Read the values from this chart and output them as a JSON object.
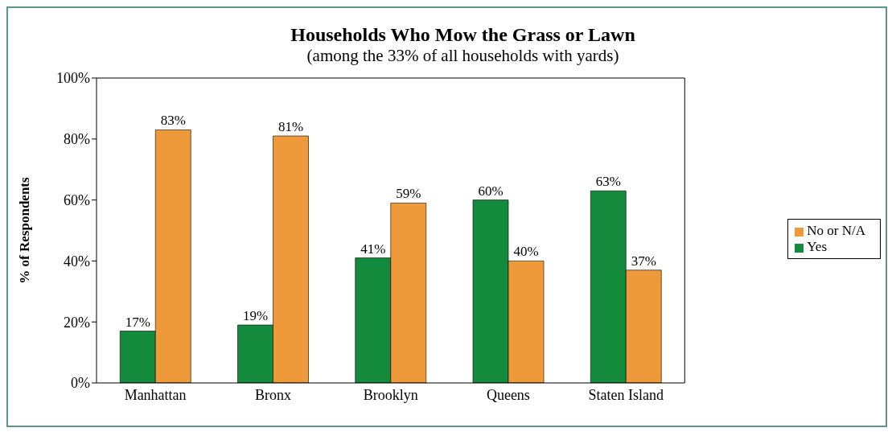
{
  "chart_data": {
    "type": "bar",
    "title": "Households Who Mow the Grass or Lawn",
    "subtitle": "(among the 33% of all households with yards)",
    "ylabel": "% of Respondents",
    "categories": [
      "Manhattan",
      "Bronx",
      "Brooklyn",
      "Queens",
      "Staten Island"
    ],
    "series": [
      {
        "name": "Yes",
        "color": "#138a3c",
        "values": [
          17,
          19,
          41,
          60,
          63
        ],
        "value_labels": [
          "17%",
          "19%",
          "41%",
          "60%",
          "63%"
        ]
      },
      {
        "name": "No or N/A",
        "color": "#ee9a3a",
        "values": [
          83,
          81,
          59,
          40,
          37
        ],
        "value_labels": [
          "83%",
          "81%",
          "59%",
          "40%",
          "37%"
        ]
      }
    ],
    "ylim": [
      0,
      100
    ],
    "yticks": [
      {
        "value": 0,
        "label": "0%"
      },
      {
        "value": 20,
        "label": "20%"
      },
      {
        "value": 40,
        "label": "40%"
      },
      {
        "value": 60,
        "label": "60%"
      },
      {
        "value": 80,
        "label": "80%"
      },
      {
        "value": 100,
        "label": "100%"
      }
    ],
    "grid": false,
    "legend": "right"
  }
}
